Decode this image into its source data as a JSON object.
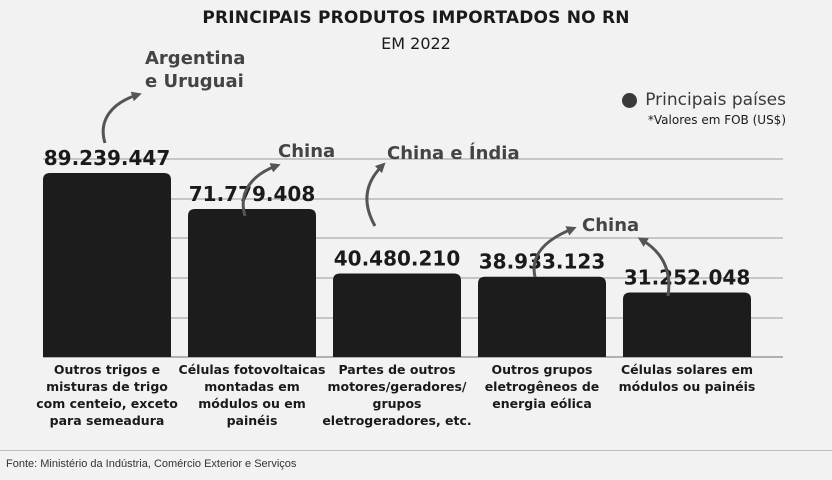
{
  "chart_data": {
    "type": "bar",
    "title": "PRINCIPAIS PRODUTOS IMPORTADOS NO RN",
    "subtitle": "EM 2022",
    "legend": "Principais países",
    "note": "*Valores em FOB (US$)",
    "source": "Fonte: Ministério da Indústria, Comércio Exterior e Serviços",
    "categories": [
      "Outros trigos e misturas de trigo com centeio, exceto para semeadura",
      "Células fotovoltaicas montadas em módulos ou em painéis",
      "Partes de outros motores/geradores/ grupos eletrogeradores, etc.",
      "Outros grupos eletrogêneos de energia eólica",
      "Células solares em módulos ou painéis"
    ],
    "category_lines": [
      [
        "Outros trigos e",
        "misturas de trigo",
        "com centeio, exceto",
        "para semeadura"
      ],
      [
        "Células fotovoltaicas",
        "montadas em",
        "módulos ou em",
        "painéis"
      ],
      [
        "Partes de outros",
        "motores/geradores/",
        "grupos",
        "eletrogeradores, etc."
      ],
      [
        "Outros grupos",
        "eletrogêneos de",
        "energia eólica"
      ],
      [
        "Células solares em",
        "módulos ou painéis"
      ]
    ],
    "values": [
      89239447,
      71779408,
      40480210,
      38933123,
      31252048
    ],
    "value_labels": [
      "89.239.447",
      "71.779.408",
      "40.480.210",
      "38.933.123",
      "31.252.048"
    ],
    "countries": [
      [
        "Argentina",
        "e Uruguai"
      ],
      [
        "China"
      ],
      [
        "China e Índia"
      ],
      [
        "China"
      ],
      [
        ""
      ]
    ],
    "grid": true,
    "legend_position": "top-right",
    "colors": {
      "bar": "#1c1c1c",
      "grid": "#9a9a9a",
      "country": "#444444",
      "arrow": "#555555"
    }
  }
}
